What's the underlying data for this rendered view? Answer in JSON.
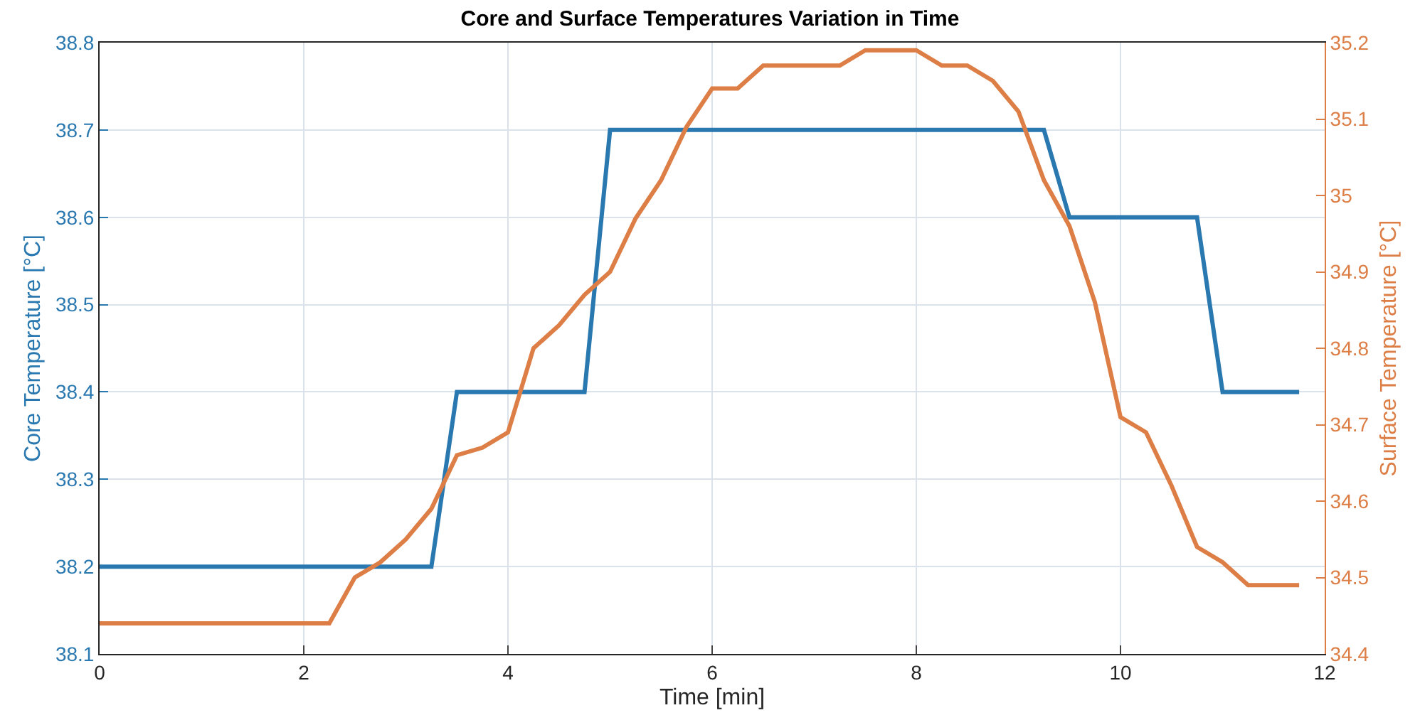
{
  "chart_data": {
    "type": "line",
    "title": "Core and Surface Temperatures Variation in Time",
    "xlabel": "Time [min]",
    "ylabel": "Core Temperature [°C]",
    "y2label": "Surface Temperature [°C]",
    "x": [
      0,
      0.25,
      0.5,
      0.75,
      1,
      1.25,
      1.5,
      1.75,
      2,
      2.25,
      2.5,
      2.75,
      3,
      3.25,
      3.5,
      3.75,
      4,
      4.25,
      4.5,
      4.75,
      5,
      5.25,
      5.5,
      5.75,
      6,
      6.25,
      6.5,
      6.75,
      7,
      7.25,
      7.5,
      7.75,
      8,
      8.25,
      8.5,
      8.75,
      9,
      9.25,
      9.5,
      9.75,
      10,
      10.25,
      10.5,
      10.75,
      11,
      11.25,
      11.5,
      11.75
    ],
    "series": [
      {
        "color": "#2a78b0",
        "values": [
          38.2,
          38.2,
          38.2,
          38.2,
          38.2,
          38.2,
          38.2,
          38.2,
          38.2,
          38.2,
          38.2,
          38.2,
          38.2,
          38.2,
          38.4,
          38.4,
          38.4,
          38.4,
          38.4,
          38.4,
          38.7,
          38.7,
          38.7,
          38.7,
          38.7,
          38.7,
          38.7,
          38.7,
          38.7,
          38.7,
          38.7,
          38.7,
          38.7,
          38.7,
          38.7,
          38.7,
          38.7,
          38.7,
          38.6,
          38.6,
          38.6,
          38.6,
          38.6,
          38.6,
          38.4,
          38.4,
          38.4,
          38.4
        ]
      },
      {
        "color": "#dc7e45",
        "axis": "y2",
        "values": [
          34.44,
          34.44,
          34.44,
          34.44,
          34.44,
          34.44,
          34.44,
          34.44,
          34.44,
          34.44,
          34.5,
          34.52,
          34.55,
          34.59,
          34.66,
          34.67,
          34.69,
          34.8,
          34.83,
          34.87,
          34.9,
          34.97,
          35.02,
          35.09,
          35.14,
          35.14,
          35.17,
          35.17,
          35.17,
          35.17,
          35.19,
          35.19,
          35.19,
          35.17,
          35.17,
          35.15,
          35.11,
          35.02,
          34.96,
          34.86,
          34.71,
          34.69,
          34.62,
          34.54,
          34.52,
          34.49,
          34.49,
          34.49
        ]
      }
    ],
    "xlim": [
      0,
      12
    ],
    "xticks": [
      0,
      2,
      4,
      6,
      8,
      10,
      12
    ],
    "ylim": [
      38.1,
      38.8
    ],
    "yticks": [
      38.1,
      38.2,
      38.3,
      38.4,
      38.5,
      38.6,
      38.7,
      38.8
    ],
    "y2lim": [
      34.4,
      35.2
    ],
    "y2ticks": [
      34.4,
      34.5,
      34.6,
      34.7,
      34.8,
      34.9,
      35,
      35.1,
      35.2
    ],
    "grid": true,
    "marker": "none",
    "line_style": "solid"
  }
}
